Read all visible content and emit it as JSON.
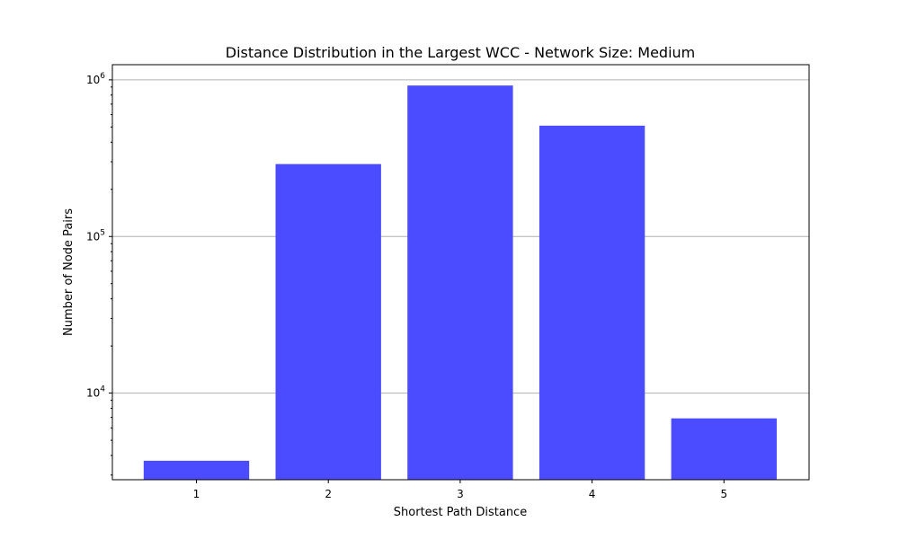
{
  "chart_data": {
    "type": "bar",
    "title": "Distance Distribution in the Largest WCC - Network Size: Medium",
    "xlabel": "Shortest Path Distance",
    "ylabel": "Number of Node Pairs",
    "categories": [
      "1",
      "2",
      "3",
      "4",
      "5"
    ],
    "values": [
      3700,
      290000,
      920000,
      510000,
      6900
    ],
    "yscale": "log",
    "ylim": [
      2800,
      1250000
    ],
    "yticks": [
      {
        "value": 10000,
        "base": "10",
        "exp": "4"
      },
      {
        "value": 100000,
        "base": "10",
        "exp": "5"
      },
      {
        "value": 1000000,
        "base": "10",
        "exp": "6"
      }
    ],
    "bar_color": "#4b4bff",
    "grid": "y-major"
  }
}
